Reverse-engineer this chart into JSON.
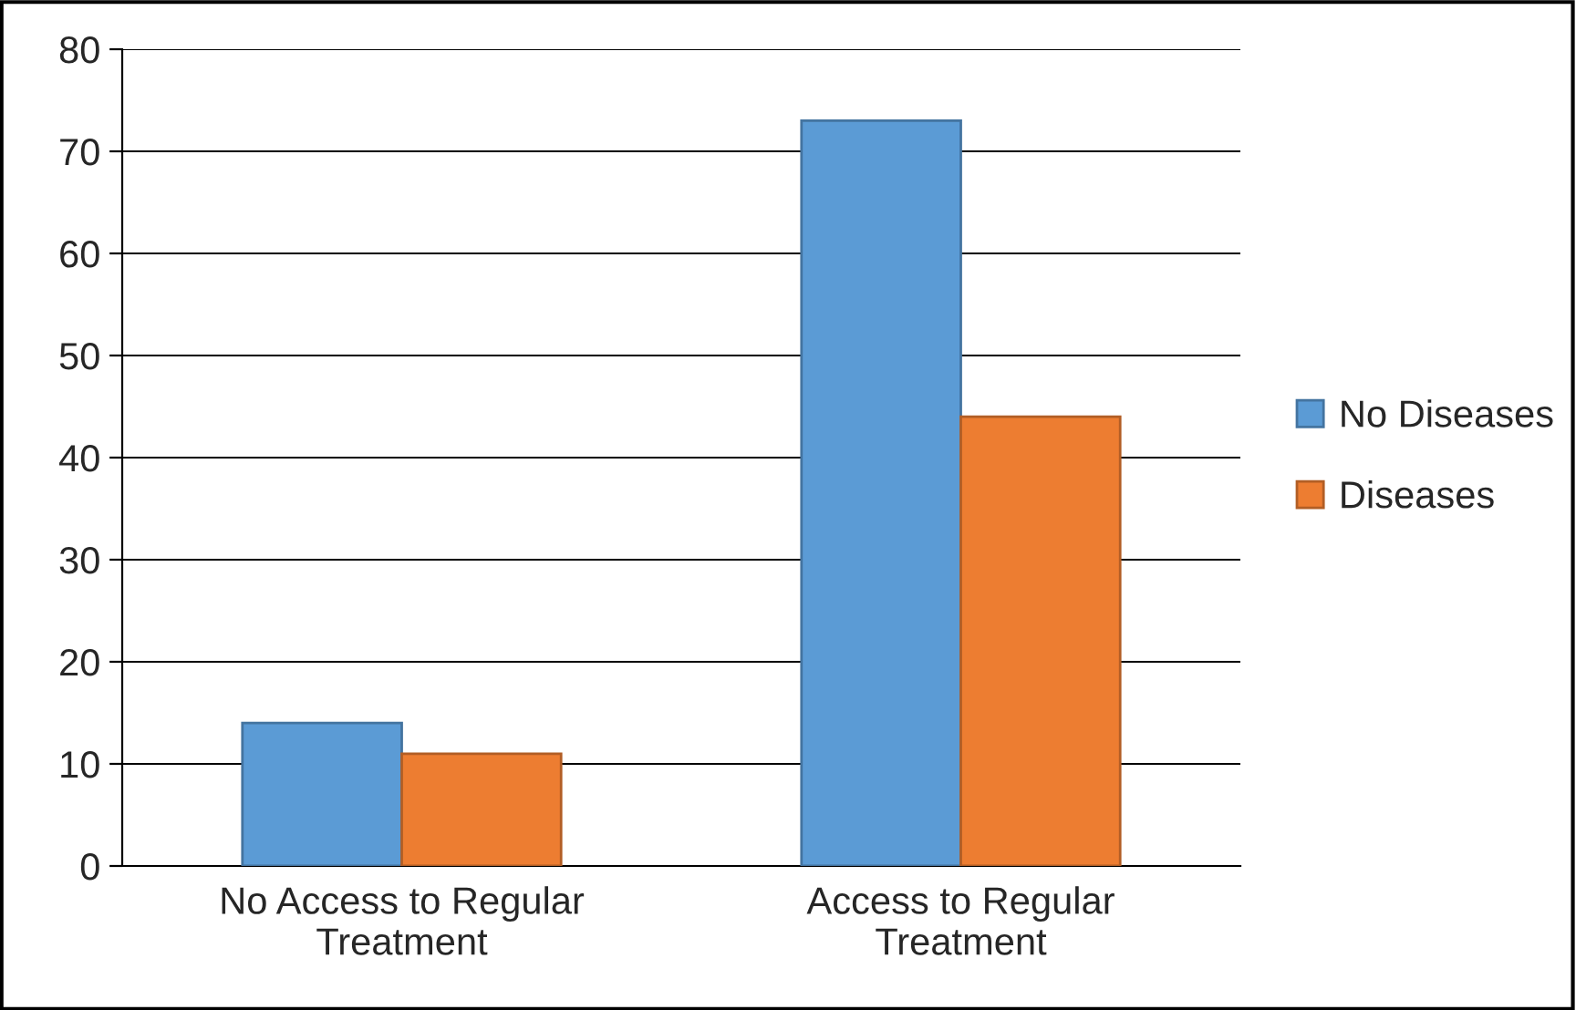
{
  "chart_data": {
    "type": "bar",
    "categories": [
      "No Access to Regular Treatment",
      "Access to Regular Treatment"
    ],
    "series": [
      {
        "name": "No Diseases",
        "color": "#5b9bd5",
        "values": [
          14,
          73
        ]
      },
      {
        "name": "Diseases",
        "color": "#ed7d31",
        "values": [
          11,
          44
        ]
      }
    ],
    "ylim": [
      0,
      80
    ],
    "yticks": [
      0,
      10,
      20,
      30,
      40,
      50,
      60,
      70,
      80
    ],
    "grid": "y",
    "legend": "right"
  }
}
